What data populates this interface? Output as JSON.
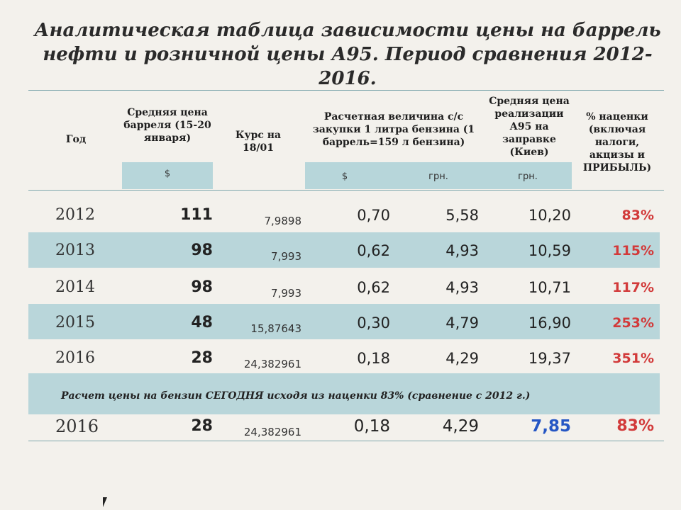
{
  "title": {
    "line1": "Аналитическая таблица зависимости цены на баррель",
    "line2": "нефти и розничной цены А95. Период сравнения 2012-2016."
  },
  "headers": {
    "year": "Год",
    "barrel": "Средняя цена барреля (15-20 января)",
    "rate": "Курс на 18/01",
    "calc": "Расчетная величина с/с закупки 1 литра бензина (1 баррель=159 л бензина)",
    "a95": "Средняя цена реализации А95 на заправке (Киев)",
    "markup": "% наценки (включая налоги, акцизы и ПРИБЫЛЬ)"
  },
  "units": {
    "barrel": "$",
    "calc_usd": "$",
    "calc_uah": "грн.",
    "a95": "грн."
  },
  "rows": [
    {
      "year": "2012",
      "price": "111",
      "rate": "7,9898",
      "usd": "0,70",
      "uah": "5,58",
      "a95": "10,20",
      "pct": "83%"
    },
    {
      "year": "2013",
      "price": "98",
      "rate": "7,993",
      "usd": "0,62",
      "uah": "4,93",
      "a95": "10,59",
      "pct": "115%"
    },
    {
      "year": "2014",
      "price": "98",
      "rate": "7,993",
      "usd": "0,62",
      "uah": "4,93",
      "a95": "10,71",
      "pct": "117%"
    },
    {
      "year": "2015",
      "price": "48",
      "rate": "15,87643",
      "usd": "0,30",
      "uah": "4,79",
      "a95": "16,90",
      "pct": "253%"
    },
    {
      "year": "2016",
      "price": "28",
      "rate": "24,382961",
      "usd": "0,18",
      "uah": "4,29",
      "a95": "19,37",
      "pct": "351%"
    }
  ],
  "note": "Расчет цены на бензин СЕГОДНЯ исходя из наценки 83% (сравнение с 2012 г.)",
  "today": {
    "year": "2016",
    "price": "28",
    "rate": "24,382961",
    "usd": "0,18",
    "uah": "4,29",
    "a95": "7,85",
    "pct": "83%"
  },
  "colors": {
    "band": "#b9d6da",
    "markup": "#d23a3a",
    "today_price": "#2556c4"
  }
}
